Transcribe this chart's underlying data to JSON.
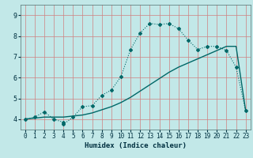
{
  "xlabel": "Humidex (Indice chaleur)",
  "bg_color": "#c2e8e8",
  "grid_color_major": "#d08080",
  "line_color": "#006868",
  "xlim": [
    -0.5,
    23.5
  ],
  "ylim": [
    3.5,
    9.5
  ],
  "x_ticks": [
    0,
    1,
    2,
    3,
    4,
    5,
    6,
    7,
    8,
    9,
    10,
    11,
    12,
    13,
    14,
    15,
    16,
    17,
    18,
    19,
    20,
    21,
    22,
    23
  ],
  "y_ticks": [
    4,
    5,
    6,
    7,
    8,
    9
  ],
  "line1_x": [
    0,
    1,
    2,
    3,
    4,
    4,
    5,
    6,
    7,
    8,
    9,
    10,
    11,
    12,
    13,
    14,
    15,
    16,
    17,
    18,
    19,
    20,
    21,
    22,
    23
  ],
  "line1_y": [
    4.0,
    4.1,
    4.35,
    4.0,
    3.85,
    3.75,
    4.1,
    4.6,
    4.65,
    5.15,
    5.4,
    6.05,
    7.35,
    8.15,
    8.6,
    8.55,
    8.6,
    8.35,
    7.8,
    7.35,
    7.5,
    7.5,
    7.3,
    6.5,
    4.4
  ],
  "line2_x": [
    0,
    1,
    2,
    3,
    4,
    5,
    6,
    7,
    8,
    9,
    10,
    11,
    12,
    13,
    14,
    15,
    16,
    17,
    18,
    19,
    20,
    21,
    22,
    23
  ],
  "line2_y": [
    4.0,
    4.05,
    4.1,
    4.1,
    4.1,
    4.15,
    4.2,
    4.3,
    4.45,
    4.6,
    4.8,
    5.05,
    5.35,
    5.65,
    5.95,
    6.25,
    6.5,
    6.7,
    6.9,
    7.1,
    7.3,
    7.5,
    7.5,
    4.4
  ]
}
